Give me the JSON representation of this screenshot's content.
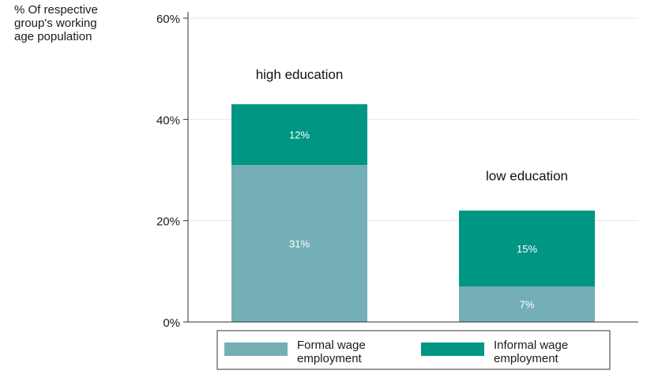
{
  "chart_data": {
    "type": "bar",
    "stacked": true,
    "ylabel_lines": [
      "% Of respective",
      "group's working",
      "age population"
    ],
    "ylim": [
      0,
      60
    ],
    "yticks": [
      0,
      20,
      40,
      60
    ],
    "ytick_labels": [
      "0%",
      "20%",
      "40%",
      "60%"
    ],
    "grid": true,
    "categories": [
      "high education",
      "low education"
    ],
    "series": [
      {
        "name_lines": [
          "Formal wage",
          "employment"
        ],
        "color": "#74afb6",
        "values": [
          31,
          7
        ],
        "labels": [
          "31%",
          "7%"
        ]
      },
      {
        "name_lines": [
          "Informal wage",
          "employment"
        ],
        "color": "#009684",
        "values": [
          12,
          15
        ],
        "labels": [
          "12%",
          "15%"
        ]
      }
    ],
    "stack_totals": [
      43,
      23
    ],
    "legend_position": "bottom"
  }
}
